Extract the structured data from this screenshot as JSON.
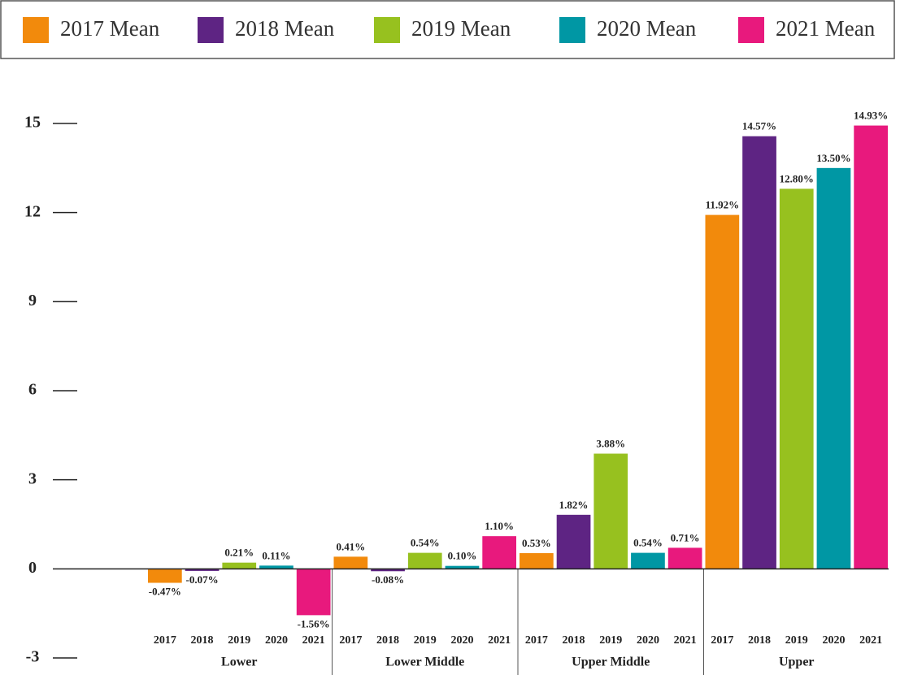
{
  "chart_data": {
    "type": "bar",
    "categories": [
      "Lower",
      "Lower Middle",
      "Upper Middle",
      "Upper"
    ],
    "subcategories": [
      "2017",
      "2018",
      "2019",
      "2020",
      "2021"
    ],
    "series": [
      {
        "name": "2017 Mean",
        "color": "#f28a0c",
        "values": [
          -0.47,
          0.41,
          0.53,
          11.92
        ],
        "value_labels": [
          "-0.47%",
          "0.41%",
          "0.53%",
          "11.92%"
        ]
      },
      {
        "name": "2018 Mean",
        "color": "#5e2483",
        "values": [
          -0.07,
          -0.08,
          1.82,
          14.57
        ],
        "value_labels": [
          "-0.07%",
          "-0.08%",
          "1.82%",
          "14.57%"
        ]
      },
      {
        "name": "2019 Mean",
        "color": "#97c11f",
        "values": [
          0.21,
          0.54,
          3.88,
          12.8
        ],
        "value_labels": [
          "0.21%",
          "0.54%",
          "3.88%",
          "12.80%"
        ]
      },
      {
        "name": "2020 Mean",
        "color": "#0097a4",
        "values": [
          0.11,
          0.1,
          0.54,
          13.5
        ],
        "value_labels": [
          "0.11%",
          "0.10%",
          "0.54%",
          "13.50%"
        ]
      },
      {
        "name": "2021 Mean",
        "color": "#e8197d",
        "values": [
          -1.56,
          1.1,
          0.71,
          14.93
        ],
        "value_labels": [
          "-1.56%",
          "1.10%",
          "0.71%",
          "14.93%"
        ]
      }
    ],
    "ylim": [
      -3,
      15
    ],
    "yticks": [
      -3,
      0,
      3,
      6,
      9,
      12,
      15
    ],
    "legend": "top"
  }
}
